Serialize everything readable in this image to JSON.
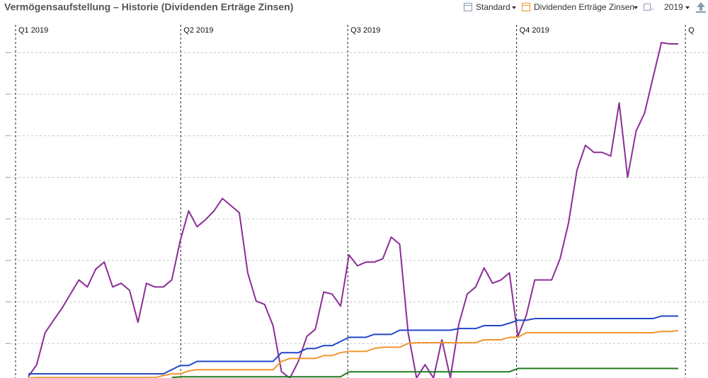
{
  "toolbar": {
    "view": "Standard",
    "filter": "Dividenden Erträge Zinsen",
    "year": "2019"
  },
  "chart_data": {
    "type": "line",
    "title": "Vermögensaufstellung – Historie (Dividenden Erträge Zinsen)",
    "x": [
      6.9,
      11.5,
      16.1,
      20.7,
      25.3,
      29.9,
      34.5,
      39.1,
      43.7,
      48.3,
      52.9,
      57.5,
      62.1,
      66.7,
      71.3,
      75.9,
      80.5,
      85.1,
      89.7,
      94.3,
      98.9,
      103.5,
      108.1,
      112.7,
      117.3,
      121.9,
      126.5,
      131.1,
      135.7,
      140.3,
      144.9,
      149.5,
      154.1,
      158.7,
      163.3,
      167.9,
      172.5,
      177.1,
      181.7,
      186.3,
      190.9,
      195.5,
      200.1,
      204.7,
      209.3,
      213.9,
      218.5,
      223.1,
      227.7,
      232.3,
      236.9,
      241.5,
      246.1,
      250.7,
      255.3,
      259.9,
      264.5,
      269.1,
      273.7,
      278.3,
      282.9,
      287.5,
      292.1,
      296.7,
      301.3,
      305.9,
      310.5,
      315.1,
      319.7,
      324.3,
      328.9,
      333.5,
      338.1,
      342.7,
      347.3,
      351.9,
      356.5,
      361.1
    ],
    "series": [
      {
        "color": "#8b2e96",
        "values": [
          2.0,
          4.9,
          12.6,
          15.6,
          18.5,
          21.9,
          25.3,
          23.6,
          27.9,
          29.6,
          23.6,
          24.5,
          22.8,
          15.1,
          24.5,
          23.6,
          23.6,
          25.3,
          34.7,
          41.9,
          38.1,
          39.8,
          41.9,
          44.9,
          43.2,
          41.5,
          27.0,
          20.2,
          19.4,
          14.3,
          3.2,
          1.7,
          5.7,
          11.7,
          13.4,
          22.4,
          21.9,
          19.0,
          31.3,
          28.7,
          29.6,
          29.6,
          30.4,
          35.6,
          33.9,
          12.6,
          1.7,
          4.9,
          1.7,
          10.9,
          1.7,
          14.6,
          21.9,
          23.6,
          28.2,
          24.5,
          25.3,
          27.0,
          11.7,
          16.8,
          25.3,
          25.3,
          25.3,
          30.4,
          39.0,
          51.7,
          57.7,
          56.0,
          56.0,
          55.1,
          67.9,
          50.0,
          61.1,
          65.4,
          73.9,
          82.4,
          82.1,
          82.1
        ]
      },
      {
        "color": "#2346c8",
        "values": [
          2.7,
          2.7,
          2.7,
          2.7,
          2.7,
          2.7,
          2.7,
          2.7,
          2.7,
          2.7,
          2.7,
          2.7,
          2.7,
          2.7,
          2.7,
          2.7,
          2.7,
          3.7,
          4.7,
          4.7,
          5.7,
          5.7,
          5.7,
          5.7,
          5.7,
          5.7,
          5.7,
          5.7,
          5.7,
          5.7,
          7.8,
          7.8,
          7.8,
          8.8,
          8.8,
          9.5,
          9.5,
          10.5,
          11.5,
          11.5,
          11.5,
          12.2,
          12.2,
          12.2,
          13.2,
          13.2,
          13.2,
          13.2,
          13.2,
          13.2,
          13.2,
          13.6,
          13.6,
          13.6,
          14.3,
          14.3,
          14.3,
          14.9,
          15.6,
          15.6,
          16.0,
          16.0,
          16.0,
          16.0,
          16.0,
          16.0,
          16.0,
          16.0,
          16.0,
          16.0,
          16.0,
          16.0,
          16.0,
          16.0,
          16.0,
          16.6,
          16.6,
          16.6
        ]
      },
      {
        "color": "#f0962d",
        "values": [
          1.7,
          1.8,
          1.8,
          1.8,
          1.8,
          1.8,
          1.8,
          1.8,
          1.8,
          1.8,
          1.8,
          1.8,
          1.8,
          1.8,
          1.8,
          1.8,
          2.3,
          2.7,
          2.7,
          3.4,
          3.7,
          3.7,
          3.7,
          3.7,
          3.7,
          3.7,
          3.7,
          3.7,
          3.7,
          3.7,
          5.7,
          6.4,
          6.4,
          6.4,
          6.4,
          7.1,
          7.1,
          7.8,
          8.1,
          8.1,
          8.1,
          8.8,
          9.1,
          9.1,
          9.1,
          10.0,
          10.2,
          10.2,
          10.2,
          10.2,
          10.2,
          10.2,
          10.2,
          10.2,
          10.9,
          10.9,
          10.9,
          11.5,
          11.5,
          12.6,
          12.6,
          12.6,
          12.6,
          12.6,
          12.6,
          12.6,
          12.6,
          12.6,
          12.6,
          12.6,
          12.6,
          12.6,
          12.6,
          12.6,
          12.6,
          12.9,
          12.9,
          13.1
        ]
      },
      {
        "color": "#1e7a1e",
        "values": [
          null,
          null,
          null,
          null,
          null,
          null,
          null,
          null,
          null,
          null,
          null,
          null,
          null,
          null,
          null,
          null,
          null,
          1.8,
          2.0,
          2.0,
          2.0,
          2.0,
          2.0,
          2.0,
          2.0,
          2.0,
          2.0,
          2.0,
          2.0,
          2.0,
          2.0,
          2.0,
          2.0,
          2.0,
          2.0,
          2.0,
          2.0,
          2.0,
          3.2,
          3.2,
          3.2,
          3.2,
          3.2,
          3.2,
          3.2,
          3.2,
          3.2,
          3.2,
          3.2,
          3.2,
          3.2,
          3.2,
          3.2,
          3.2,
          3.2,
          3.2,
          3.2,
          3.2,
          4.0,
          4.0,
          4.0,
          4.0,
          4.0,
          4.0,
          4.0,
          4.0,
          4.0,
          4.0,
          4.0,
          4.0,
          4.0,
          4.0,
          4.0,
          4.0,
          4.0,
          4.0,
          4.0,
          4.0
        ]
      }
    ],
    "xlim": [
      -5.4,
      377.3
    ],
    "xticks": [
      {
        "value": 0,
        "label": "Q1 2019"
      },
      {
        "value": 90,
        "label": "Q2 2019"
      },
      {
        "value": 181,
        "label": "Q3 2019"
      },
      {
        "value": 273,
        "label": "Q4 2019"
      },
      {
        "value": 365,
        "label": "Q"
      }
    ],
    "ylim": [
      1.7,
      86.7
    ],
    "yticks": [
      10,
      20,
      30,
      40,
      50,
      60,
      70,
      80
    ],
    "grid": true
  }
}
